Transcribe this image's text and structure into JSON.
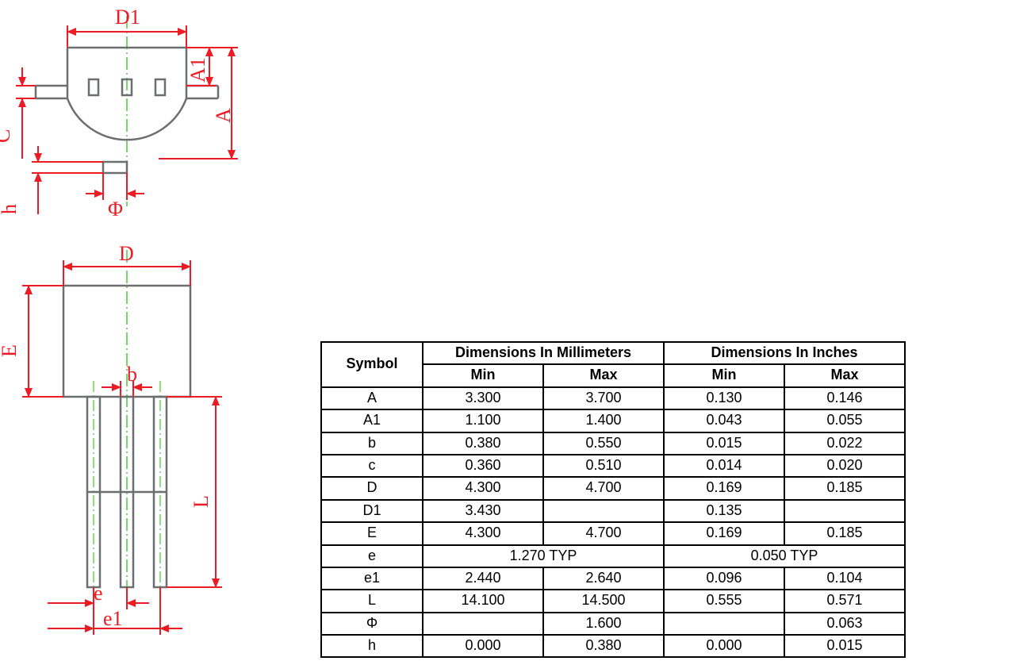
{
  "colors": {
    "dim_red": "#ed1c24",
    "outline_gray": "#6d6e71",
    "centerline_green": "#1bbf00",
    "table_border": "#000000",
    "table_text": "#000000",
    "background": "#ffffff"
  },
  "diagram": {
    "type": "engineering-package-drawing",
    "labels": {
      "D1": "D1",
      "A1": "A1",
      "A": "A",
      "C": "C",
      "h": "h",
      "Phi": "Φ",
      "D": "D",
      "E": "E",
      "b": "b",
      "L": "L",
      "e": "e",
      "e1": "e1"
    },
    "line_widths": {
      "dimension": 2,
      "outline": 2.5,
      "centerline": 1
    },
    "font_family": "Times New Roman",
    "label_fontsize": 26
  },
  "table": {
    "header": {
      "symbol": "Symbol",
      "mm": "Dimensions In Millimeters",
      "in": "Dimensions In Inches",
      "min": "Min",
      "max": "Max"
    },
    "columns": [
      "Symbol",
      "mm_min",
      "mm_max",
      "in_min",
      "in_max"
    ],
    "rows": [
      {
        "sym": "A",
        "mm_min": "3.300",
        "mm_max": "3.700",
        "in_min": "0.130",
        "in_max": "0.146"
      },
      {
        "sym": "A1",
        "mm_min": "1.100",
        "mm_max": "1.400",
        "in_min": "0.043",
        "in_max": "0.055"
      },
      {
        "sym": "b",
        "mm_min": "0.380",
        "mm_max": "0.550",
        "in_min": "0.015",
        "in_max": "0.022"
      },
      {
        "sym": "c",
        "mm_min": "0.360",
        "mm_max": "0.510",
        "in_min": "0.014",
        "in_max": "0.020"
      },
      {
        "sym": "D",
        "mm_min": "4.300",
        "mm_max": "4.700",
        "in_min": "0.169",
        "in_max": "0.185"
      },
      {
        "sym": "D1",
        "mm_min": "3.430",
        "mm_max": "",
        "in_min": "0.135",
        "in_max": ""
      },
      {
        "sym": "E",
        "mm_min": "4.300",
        "mm_max": "4.700",
        "in_min": "0.169",
        "in_max": "0.185"
      },
      {
        "sym": "e",
        "mm_typ": "1.270 TYP",
        "in_typ": "0.050 TYP"
      },
      {
        "sym": "e1",
        "mm_min": "2.440",
        "mm_max": "2.640",
        "in_min": "0.096",
        "in_max": "0.104"
      },
      {
        "sym": "L",
        "mm_min": "14.100",
        "mm_max": "14.500",
        "in_min": "0.555",
        "in_max": "0.571"
      },
      {
        "sym": "Φ",
        "mm_min": "",
        "mm_max": "1.600",
        "in_min": "",
        "in_max": "0.063"
      },
      {
        "sym": "h",
        "mm_min": "0.000",
        "mm_max": "0.380",
        "in_min": "0.000",
        "in_max": "0.015"
      }
    ],
    "font_size": 18,
    "border_width": 2
  }
}
